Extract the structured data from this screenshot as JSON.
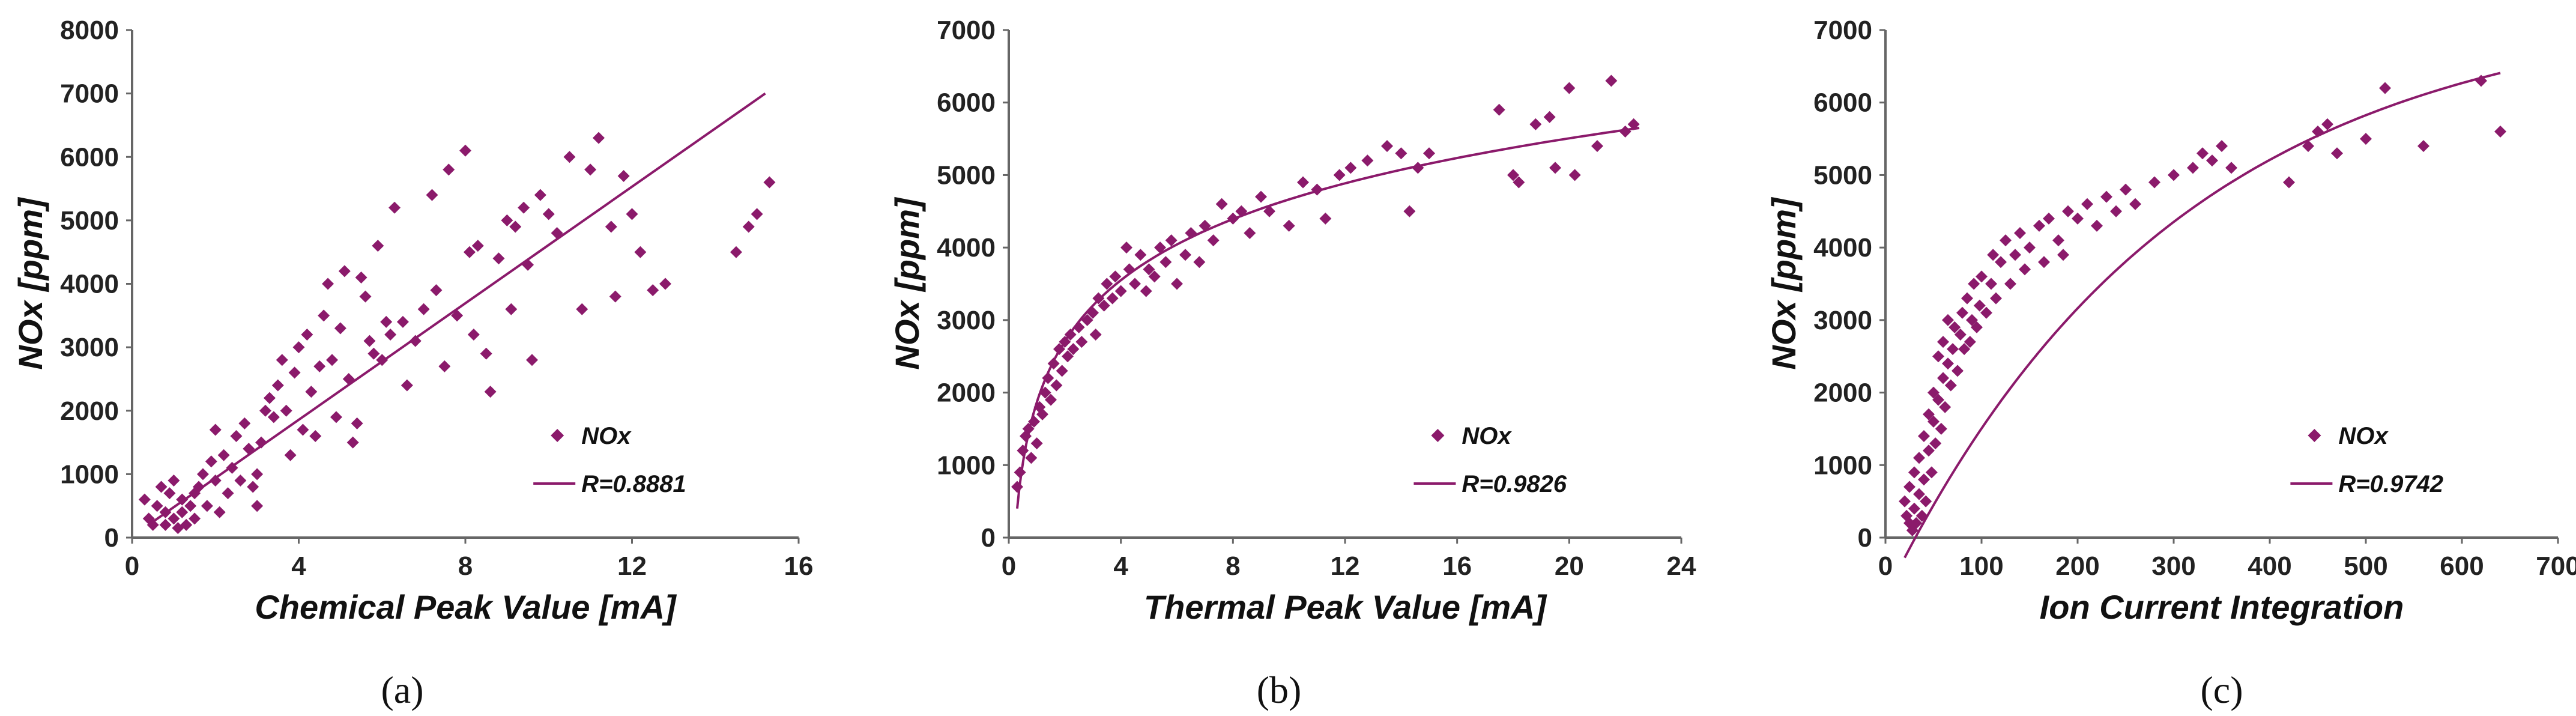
{
  "figure": {
    "accent_color": "#8B1A6B",
    "axis_color": "#666666",
    "grid": false
  },
  "chart_data": [
    {
      "type": "scatter",
      "caption_letter": "a",
      "caption_text": "(a)",
      "xlabel": "Chemical Peak Value [mA]",
      "ylabel": "NOx [ppm]",
      "xlim": [
        0,
        16
      ],
      "ylim": [
        0,
        8000
      ],
      "xticks": [
        0,
        4,
        8,
        12,
        16
      ],
      "yticks": [
        0,
        1000,
        2000,
        3000,
        4000,
        5000,
        6000,
        7000,
        8000
      ],
      "legend": {
        "marker_label": "NOx",
        "fit_label": "R=0.8881",
        "position": "bottom-right"
      },
      "fit": {
        "kind": "linear",
        "x": [
          0.5,
          15.2
        ],
        "y": [
          250,
          7000
        ]
      },
      "series": [
        {
          "name": "NOx",
          "x": [
            0.3,
            0.4,
            0.5,
            0.6,
            0.7,
            0.8,
            0.8,
            0.9,
            1.0,
            1.0,
            1.1,
            1.2,
            1.2,
            1.3,
            1.4,
            1.5,
            1.5,
            1.6,
            1.7,
            1.8,
            1.9,
            2.0,
            2.0,
            2.1,
            2.2,
            2.3,
            2.4,
            2.5,
            2.6,
            2.7,
            2.8,
            2.9,
            3.0,
            3.0,
            3.1,
            3.2,
            3.3,
            3.4,
            3.5,
            3.6,
            3.7,
            3.8,
            3.9,
            4.0,
            4.1,
            4.2,
            4.3,
            4.4,
            4.5,
            4.6,
            4.7,
            4.8,
            4.9,
            5.0,
            5.1,
            5.2,
            5.3,
            5.4,
            5.5,
            5.6,
            5.7,
            5.8,
            5.9,
            6.0,
            6.1,
            6.2,
            6.3,
            6.5,
            6.6,
            6.8,
            7.0,
            7.2,
            7.3,
            7.5,
            7.6,
            7.8,
            8.0,
            8.1,
            8.2,
            8.3,
            8.5,
            8.6,
            8.8,
            9.0,
            9.1,
            9.2,
            9.4,
            9.5,
            9.6,
            9.8,
            10.0,
            10.2,
            10.5,
            10.8,
            11.0,
            11.2,
            11.5,
            11.6,
            11.8,
            12.0,
            12.2,
            12.5,
            12.8,
            14.5,
            14.8,
            15.0,
            15.3
          ],
          "y": [
            600,
            300,
            200,
            500,
            800,
            400,
            200,
            700,
            300,
            900,
            150,
            600,
            400,
            200,
            500,
            700,
            300,
            800,
            1000,
            500,
            1200,
            1700,
            900,
            400,
            1300,
            700,
            1100,
            1600,
            900,
            1800,
            1400,
            800,
            500,
            1000,
            1500,
            2000,
            2200,
            1900,
            2400,
            2800,
            2000,
            1300,
            2600,
            3000,
            1700,
            3200,
            2300,
            1600,
            2700,
            3500,
            4000,
            2800,
            1900,
            3300,
            4200,
            2500,
            1500,
            1800,
            4100,
            3800,
            3100,
            2900,
            4600,
            2800,
            3400,
            3200,
            5200,
            3400,
            2400,
            3100,
            3600,
            5400,
            3900,
            2700,
            5800,
            3500,
            6100,
            4500,
            3200,
            4600,
            2900,
            2300,
            4400,
            5000,
            3600,
            4900,
            5200,
            4300,
            2800,
            5400,
            5100,
            4800,
            6000,
            3600,
            5800,
            6300,
            4900,
            3800,
            5700,
            5100,
            4500,
            3900,
            4000,
            4500,
            4900,
            5100,
            5600
          ]
        }
      ]
    },
    {
      "type": "scatter",
      "caption_letter": "b",
      "caption_text": "(b)",
      "xlabel": "Thermal Peak Value [mA]",
      "ylabel": "NOx [ppm]",
      "xlim": [
        0,
        24
      ],
      "ylim": [
        0,
        7000
      ],
      "xticks": [
        0,
        4,
        8,
        12,
        16,
        20,
        24
      ],
      "yticks": [
        0,
        1000,
        2000,
        3000,
        4000,
        5000,
        6000,
        7000
      ],
      "legend": {
        "marker_label": "NOx",
        "fit_label": "R=0.9826",
        "position": "bottom-right"
      },
      "fit": {
        "kind": "log",
        "x": [
          0.3,
          22.5
        ],
        "y": [
          400,
          5650
        ]
      },
      "series": [
        {
          "name": "NOx",
          "x": [
            0.3,
            0.4,
            0.5,
            0.6,
            0.7,
            0.8,
            0.9,
            1.0,
            1.1,
            1.2,
            1.3,
            1.4,
            1.5,
            1.6,
            1.7,
            1.8,
            1.9,
            2.0,
            2.1,
            2.2,
            2.3,
            2.5,
            2.6,
            2.8,
            3.0,
            3.1,
            3.2,
            3.4,
            3.5,
            3.7,
            3.8,
            4.0,
            4.2,
            4.3,
            4.5,
            4.7,
            4.9,
            5.0,
            5.2,
            5.4,
            5.6,
            5.8,
            6.0,
            6.3,
            6.5,
            6.8,
            7.0,
            7.3,
            7.6,
            8.0,
            8.3,
            8.6,
            9.0,
            9.3,
            10.0,
            10.5,
            11.0,
            11.3,
            11.8,
            12.2,
            12.8,
            13.5,
            14.0,
            14.3,
            14.6,
            15.0,
            17.5,
            18.0,
            18.2,
            18.8,
            19.3,
            19.5,
            20.0,
            20.2,
            21.0,
            21.5,
            22.0,
            22.3
          ],
          "y": [
            700,
            900,
            1200,
            1400,
            1500,
            1100,
            1600,
            1300,
            1800,
            1700,
            2000,
            2200,
            1900,
            2400,
            2100,
            2600,
            2300,
            2700,
            2500,
            2800,
            2600,
            2900,
            2700,
            3000,
            3100,
            2800,
            3300,
            3200,
            3500,
            3300,
            3600,
            3400,
            4000,
            3700,
            3500,
            3900,
            3400,
            3700,
            3600,
            4000,
            3800,
            4100,
            3500,
            3900,
            4200,
            3800,
            4300,
            4100,
            4600,
            4400,
            4500,
            4200,
            4700,
            4500,
            4300,
            4900,
            4800,
            4400,
            5000,
            5100,
            5200,
            5400,
            5300,
            4500,
            5100,
            5300,
            5900,
            5000,
            4900,
            5700,
            5800,
            5100,
            6200,
            5000,
            5400,
            6300,
            5600,
            5700
          ]
        }
      ]
    },
    {
      "type": "scatter",
      "caption_letter": "c",
      "caption_text": "(c)",
      "xlabel": "Ion Current Integration",
      "ylabel": "NOx [ppm]",
      "xlim": [
        0,
        700
      ],
      "ylim": [
        0,
        7000
      ],
      "xticks": [
        0,
        100,
        200,
        300,
        400,
        500,
        600,
        700
      ],
      "yticks": [
        0,
        1000,
        2000,
        3000,
        4000,
        5000,
        6000,
        7000
      ],
      "legend": {
        "marker_label": "NOx",
        "fit_label": "R=0.9742",
        "position": "bottom-right"
      },
      "fit": {
        "kind": "exp",
        "a": 7200,
        "b": 0.0033,
        "c": -1000,
        "x": [
          20,
          640
        ]
      },
      "series": [
        {
          "name": "NOx",
          "x": [
            20,
            22,
            25,
            25,
            28,
            30,
            30,
            32,
            35,
            35,
            38,
            40,
            40,
            42,
            45,
            45,
            48,
            50,
            50,
            52,
            55,
            55,
            58,
            60,
            60,
            62,
            65,
            65,
            68,
            70,
            72,
            75,
            78,
            80,
            82,
            85,
            88,
            90,
            92,
            95,
            98,
            100,
            105,
            110,
            112,
            115,
            120,
            125,
            130,
            135,
            140,
            145,
            150,
            160,
            165,
            170,
            180,
            185,
            190,
            200,
            210,
            220,
            230,
            240,
            250,
            260,
            280,
            300,
            320,
            330,
            340,
            350,
            360,
            420,
            440,
            450,
            460,
            470,
            500,
            520,
            560,
            620,
            640
          ],
          "y": [
            500,
            300,
            200,
            700,
            100,
            400,
            900,
            200,
            600,
            1100,
            300,
            800,
            1400,
            500,
            1200,
            1700,
            900,
            1600,
            2000,
            1300,
            1900,
            2500,
            1500,
            2200,
            2700,
            1800,
            2400,
            3000,
            2100,
            2600,
            2900,
            2300,
            2800,
            3100,
            2600,
            3300,
            2700,
            3000,
            3500,
            2900,
            3200,
            3600,
            3100,
            3500,
            3900,
            3300,
            3800,
            4100,
            3500,
            3900,
            4200,
            3700,
            4000,
            4300,
            3800,
            4400,
            4100,
            3900,
            4500,
            4400,
            4600,
            4300,
            4700,
            4500,
            4800,
            4600,
            4900,
            5000,
            5100,
            5300,
            5200,
            5400,
            5100,
            4900,
            5400,
            5600,
            5700,
            5300,
            5500,
            6200,
            5400,
            6300,
            5600
          ]
        }
      ]
    }
  ]
}
